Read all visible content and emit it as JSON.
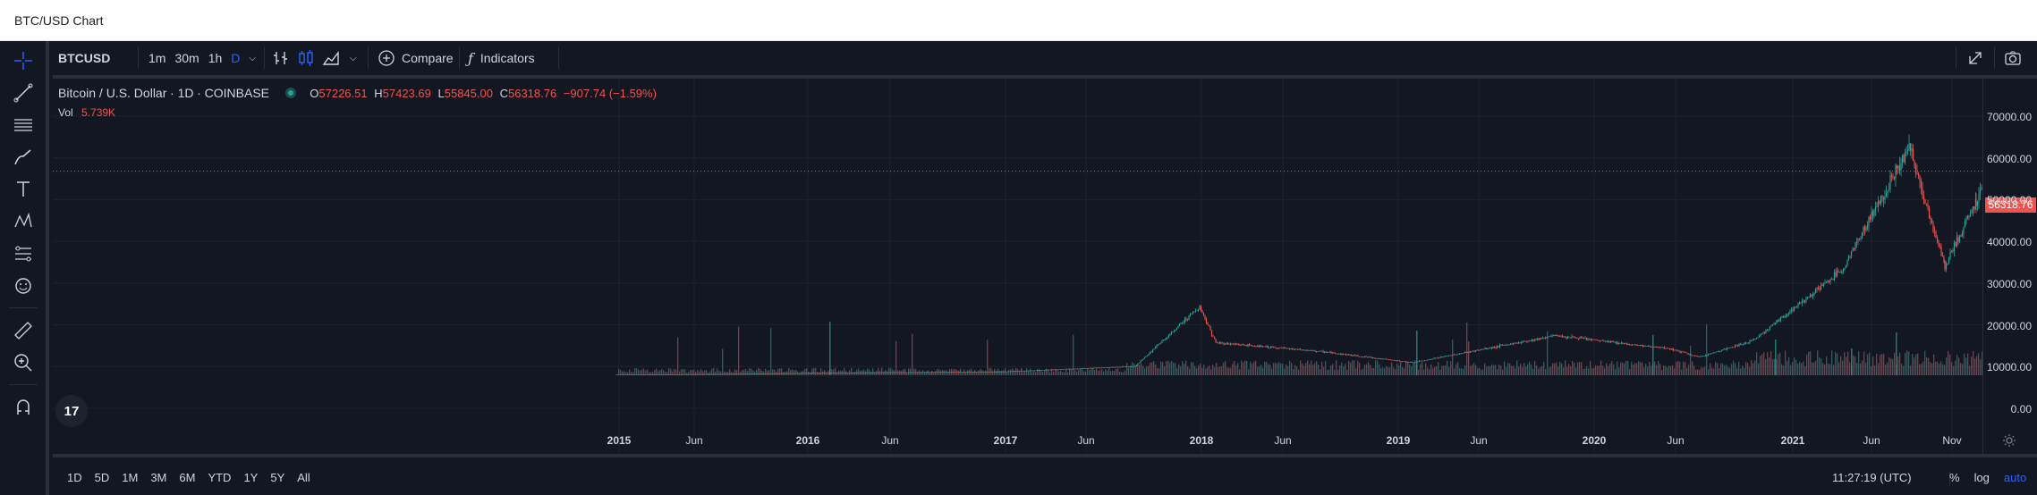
{
  "window": {
    "title": "BTC/USD Chart"
  },
  "toolbar": {
    "symbol": "BTCUSD",
    "intervals": [
      "1m",
      "30m",
      "1h",
      "D"
    ],
    "active_interval": "D",
    "compare_label": "Compare",
    "indicators_label": "Indicators"
  },
  "legend": {
    "name": "Bitcoin / U.S. Dollar",
    "interval": "1D",
    "exchange": "COINBASE",
    "open_prefix": "O",
    "open": "57226.51",
    "high_prefix": "H",
    "high": "57423.69",
    "low_prefix": "L",
    "low": "55845.00",
    "close_prefix": "C",
    "close": "56318.76",
    "change": "−907.74 (−1.59%)",
    "vol_label": "Vol",
    "vol_value": "5.739K"
  },
  "price_axis": {
    "ticks": [
      "70000.00",
      "60000.00",
      "50000.00",
      "40000.00",
      "30000.00",
      "20000.00",
      "10000.00",
      "0.00"
    ],
    "current_price": "56318.76"
  },
  "time_axis": {
    "labels": [
      {
        "text": "2015",
        "year": true
      },
      {
        "text": "Jun",
        "year": false
      },
      {
        "text": "2016",
        "year": true
      },
      {
        "text": "Jun",
        "year": false
      },
      {
        "text": "2017",
        "year": true
      },
      {
        "text": "Jun",
        "year": false
      },
      {
        "text": "2018",
        "year": true
      },
      {
        "text": "Jun",
        "year": false
      },
      {
        "text": "2019",
        "year": true
      },
      {
        "text": "Jun",
        "year": false
      },
      {
        "text": "2020",
        "year": true
      },
      {
        "text": "Jun",
        "year": false
      },
      {
        "text": "2021",
        "year": true
      },
      {
        "text": "Jun",
        "year": false
      },
      {
        "text": "Nov",
        "year": false
      }
    ]
  },
  "bottom_bar": {
    "ranges": [
      "1D",
      "5D",
      "1M",
      "3M",
      "6M",
      "YTD",
      "1Y",
      "5Y",
      "All"
    ],
    "clock": "11:27:19 (UTC)",
    "percent_label": "%",
    "log_label": "log",
    "auto_label": "auto"
  },
  "colors": {
    "up": "#26a69a",
    "down": "#ef5350",
    "accent": "#2962ff",
    "background": "#131722"
  },
  "chart_data": {
    "type": "line",
    "title": "",
    "ylim": [
      0,
      72000
    ],
    "x": [
      "2015-01",
      "2015-06",
      "2016-01",
      "2016-06",
      "2017-01",
      "2017-06",
      "2017-12",
      "2018-02",
      "2018-06",
      "2018-12",
      "2019-06",
      "2019-12",
      "2020-03",
      "2020-06",
      "2020-12",
      "2021-04",
      "2021-07",
      "2021-09",
      "2021-11",
      "2021-12"
    ],
    "series": [
      {
        "values": [
          250,
          230,
          430,
          650,
          1000,
          2500,
          19000,
          9000,
          6500,
          3500,
          11000,
          7200,
          5000,
          9500,
          29000,
          63000,
          30000,
          48000,
          67500,
          56318
        ]
      }
    ]
  }
}
